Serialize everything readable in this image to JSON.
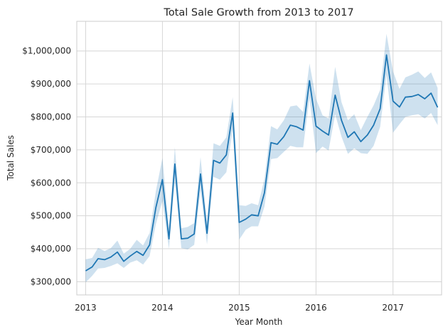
{
  "chart_data": {
    "type": "line",
    "title": "Total Sale Growth from 2013 to 2017",
    "xlabel": "Year Month",
    "ylabel": "Total Sales",
    "x_ticks": [
      "2013",
      "2014",
      "2015",
      "2016",
      "2017"
    ],
    "y_ticks": [
      {
        "value": 300000,
        "label": "$300,000"
      },
      {
        "value": 400000,
        "label": "$400,000"
      },
      {
        "value": 500000,
        "label": "$500,000"
      },
      {
        "value": 600000,
        "label": "$600,000"
      },
      {
        "value": 700000,
        "label": "$700,000"
      },
      {
        "value": 800000,
        "label": "$800,000"
      },
      {
        "value": 900000,
        "label": "$900,000"
      },
      {
        "value": 1000000,
        "label": "$1,000,000"
      }
    ],
    "xlim": [
      "2012-11-20",
      "2017-08-20"
    ],
    "ylim": [
      260000,
      1090000
    ],
    "grid": true,
    "line_color": "#1f77b4",
    "band_color": "#1f77b4",
    "series": [
      {
        "x": [
          "2013-01",
          "2013-02",
          "2013-03",
          "2013-04",
          "2013-05",
          "2013-06",
          "2013-07",
          "2013-08",
          "2013-09",
          "2013-10",
          "2013-11",
          "2013-12",
          "2014-01",
          "2014-02",
          "2014-03",
          "2014-04",
          "2014-05",
          "2014-06",
          "2014-07",
          "2014-08",
          "2014-09",
          "2014-10",
          "2014-11",
          "2014-12",
          "2015-01",
          "2015-02",
          "2015-03",
          "2015-04",
          "2015-05",
          "2015-06",
          "2015-07",
          "2015-08",
          "2015-09",
          "2015-10",
          "2015-11",
          "2015-12",
          "2016-01",
          "2016-02",
          "2016-03",
          "2016-04",
          "2016-05",
          "2016-06",
          "2016-07",
          "2016-08",
          "2016-09",
          "2016-10",
          "2016-11",
          "2016-12",
          "2017-01",
          "2017-02",
          "2017-03",
          "2017-04",
          "2017-05",
          "2017-06",
          "2017-07",
          "2017-08"
        ],
        "y": [
          333000,
          345000,
          370000,
          367000,
          375000,
          390000,
          362000,
          378000,
          392000,
          380000,
          412000,
          525000,
          610000,
          430000,
          657000,
          430000,
          432000,
          445000,
          627000,
          447000,
          668000,
          660000,
          685000,
          812000,
          480000,
          490000,
          503000,
          500000,
          570000,
          722000,
          717000,
          740000,
          775000,
          770000,
          760000,
          910000,
          772000,
          757000,
          745000,
          866000,
          790000,
          738000,
          755000,
          725000,
          745000,
          775000,
          825000,
          988000,
          848000,
          830000,
          860000,
          862000,
          868000,
          855000,
          872000,
          829000
        ],
        "lower": [
          298000,
          318000,
          340000,
          342000,
          348000,
          356000,
          342000,
          358000,
          365000,
          352000,
          378000,
          475000,
          545000,
          400000,
          605000,
          402000,
          398000,
          412000,
          578000,
          413000,
          618000,
          610000,
          632000,
          762000,
          428000,
          458000,
          468000,
          468000,
          528000,
          672000,
          675000,
          694000,
          712000,
          708000,
          708000,
          858000,
          690000,
          710000,
          698000,
          808000,
          740000,
          688000,
          705000,
          690000,
          688000,
          712000,
          770000,
          928000,
          752000,
          778000,
          800000,
          805000,
          808000,
          795000,
          812000,
          775000
        ],
        "upper": [
          368000,
          372000,
          403000,
          393000,
          402000,
          425000,
          385000,
          400000,
          427000,
          410000,
          448000,
          575000,
          675000,
          462000,
          708000,
          462000,
          466000,
          478000,
          678000,
          482000,
          720000,
          712000,
          738000,
          860000,
          532000,
          530000,
          538000,
          532000,
          612000,
          772000,
          762000,
          790000,
          832000,
          835000,
          815000,
          962000,
          855000,
          805000,
          795000,
          952000,
          845000,
          790000,
          808000,
          760000,
          800000,
          835000,
          882000,
          1052000,
          938000,
          885000,
          920000,
          928000,
          938000,
          918000,
          935000,
          888000
        ]
      }
    ]
  }
}
